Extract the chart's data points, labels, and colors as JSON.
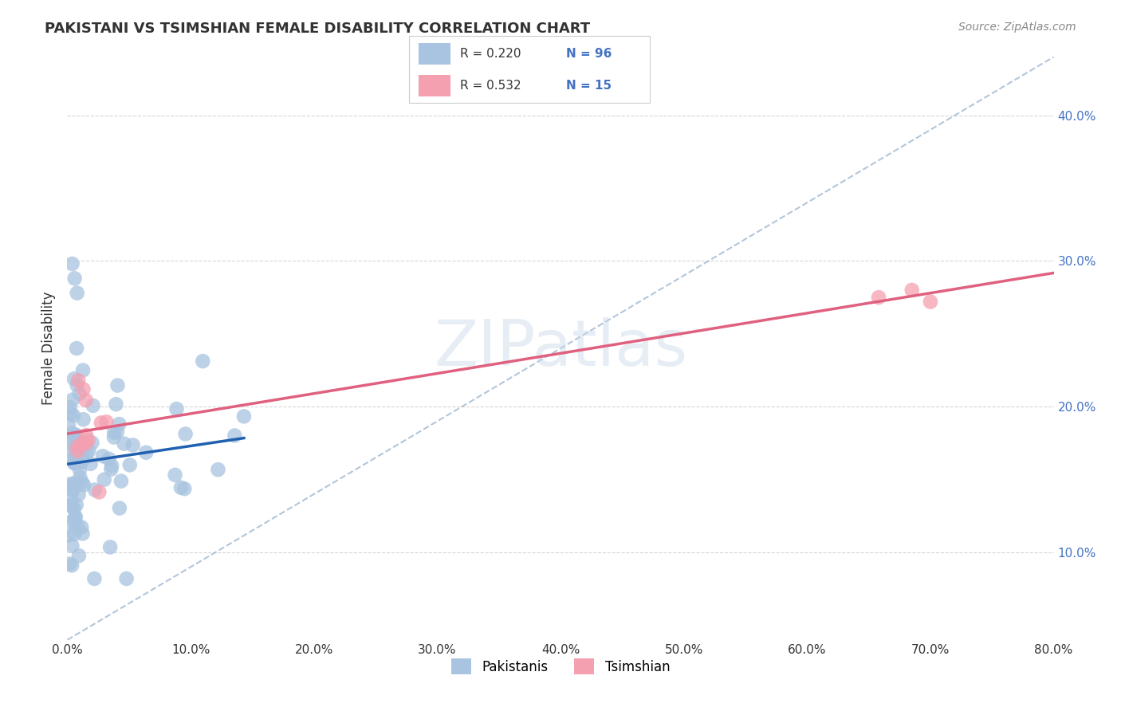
{
  "title": "PAKISTANI VS TSIMSHIAN FEMALE DISABILITY CORRELATION CHART",
  "source": "Source: ZipAtlas.com",
  "ylabel": "Female Disability",
  "xlim": [
    0,
    0.8
  ],
  "ylim": [
    0.04,
    0.44
  ],
  "xticks": [
    0.0,
    0.1,
    0.2,
    0.3,
    0.4,
    0.5,
    0.6,
    0.7,
    0.8
  ],
  "yticks": [
    0.1,
    0.2,
    0.3,
    0.4
  ],
  "xtick_labels": [
    "0.0%",
    "10.0%",
    "20.0%",
    "30.0%",
    "40.0%",
    "50.0%",
    "60.0%",
    "70.0%",
    "80.0%"
  ],
  "ytick_labels": [
    "10.0%",
    "20.0%",
    "30.0%",
    "40.0%"
  ],
  "background_color": "#ffffff",
  "grid_color": "#cccccc",
  "series1_color": "#a8c4e0",
  "series2_color": "#f5a0b0",
  "line1_color": "#2060b0",
  "line2_color": "#e06080",
  "dashed_line_color": "#a0b8d0",
  "legend_R1": "R = 0.220",
  "legend_N1": "N = 96",
  "legend_R2": "R = 0.532",
  "legend_N2": "N = 15",
  "watermark": "ZIPatlas"
}
